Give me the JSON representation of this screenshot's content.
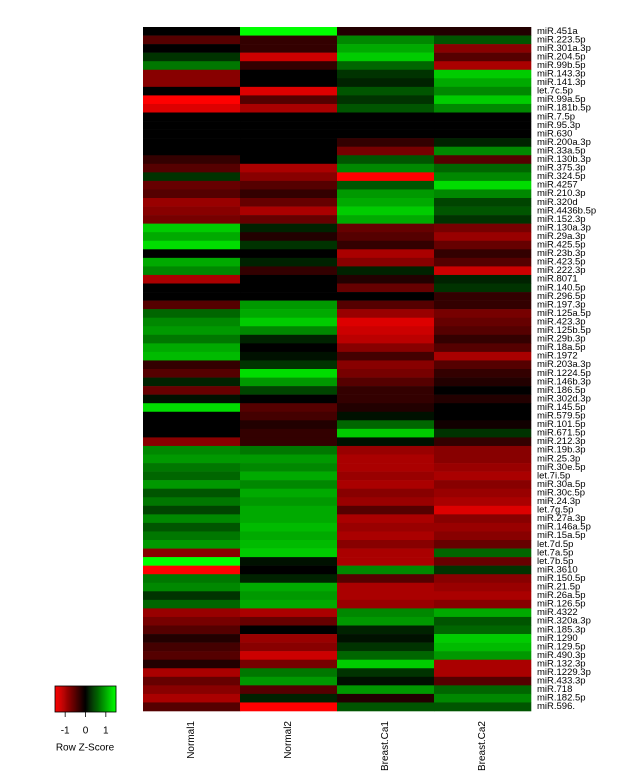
{
  "chart_data": {
    "type": "heatmap",
    "columns": [
      "Normal1",
      "Normal2",
      "Breast.Ca1",
      "Breast.Ca2"
    ],
    "rows": [
      "miR.451a",
      "miR.223.5p",
      "miR.301a.3p",
      "miR.204.5p",
      "miR.99b.5p",
      "miR.143.3p",
      "miR.141.3p",
      "let.7c.5p",
      "miR.99a.5p",
      "miR.181b.5p",
      "miR.7.5p",
      "miR.95.3p",
      "miR.630",
      "miR.200a.3p",
      "miR.33a.5p",
      "miR.130b.3p",
      "miR.375.3p",
      "miR.324.5p",
      "miR.4257",
      "miR.210.3p",
      "miR.320d",
      "miR.4436b.5p",
      "miR.152.3p",
      "miR.130a.3p",
      "miR.29a.3p",
      "miR.425.5p",
      "miR.23b.3p",
      "miR.423.5p",
      "miR.222.3p",
      "miR.8071",
      "miR.140.5p",
      "miR.296.5p",
      "miR.197.3p",
      "miR.125a.5p",
      "miR.423.3p",
      "miR.125b.5p",
      "miR.29b.3p",
      "miR.18a.5p",
      "miR.1972",
      "miR.203a.3p",
      "miR.1224.5p",
      "miR.146b.3p",
      "miR.186.5p",
      "miR.302d.3p",
      "miR.145.5p",
      "miR.579.5p",
      "miR.101.5p",
      "miR.671.5p",
      "miR.212.3p",
      "miR.19b.3p",
      "miR.25.3p",
      "miR.30e.5p",
      "let.7i.5p",
      "miR.30a.5p",
      "miR.30c.5p",
      "miR.24.3p",
      "let.7g.5p",
      "miR.27a.3p",
      "miR.146a.5p",
      "miR.15a.5p",
      "let.7d.5p",
      "let.7a.5p",
      "let.7b.5p",
      "miR.3610",
      "miR.150.5p",
      "miR.21.5p",
      "miR.26a.5p",
      "miR.126.5p",
      "miR.4322",
      "miR.320a.3p",
      "miR.185.3p",
      "miR.1290",
      "miR.129.5p",
      "miR.490.3p",
      "miR.132.3p",
      "miR.1229.3p",
      "miR.433.3p",
      "miR.718",
      "miR.182.5p",
      "miR.596."
    ],
    "values": [
      [
        0,
        1.5,
        -0.2,
        -0.2
      ],
      [
        -0.5,
        -0.3,
        0.8,
        0.5
      ],
      [
        0,
        -0.3,
        1,
        -0.8
      ],
      [
        0.3,
        -1.2,
        1.2,
        -0.5
      ],
      [
        0.7,
        -0.3,
        0.6,
        -1
      ],
      [
        -0.8,
        0,
        0.3,
        1.2
      ],
      [
        -0.8,
        0,
        0.2,
        1
      ],
      [
        0,
        -1.3,
        0.5,
        0.8
      ],
      [
        -1.5,
        -0.5,
        0.3,
        1.2
      ],
      [
        -1.3,
        -1,
        0.5,
        0.8
      ],
      [
        0,
        0,
        0,
        0
      ],
      [
        0,
        0,
        0,
        0
      ],
      [
        0,
        0,
        0,
        0
      ],
      [
        0,
        0,
        -0.3,
        0.2
      ],
      [
        0,
        0,
        -0.7,
        0.8
      ],
      [
        -0.3,
        0,
        0.5,
        -0.5
      ],
      [
        -0.5,
        -1,
        0.8,
        0.6
      ],
      [
        0.3,
        -0.8,
        -1.5,
        0.8
      ],
      [
        -0.6,
        -0.5,
        0.5,
        1.3
      ],
      [
        -0.5,
        -0.3,
        0.9,
        0.8
      ],
      [
        -0.9,
        -0.6,
        1,
        0.4
      ],
      [
        -0.8,
        -1,
        1.2,
        0.5
      ],
      [
        -0.7,
        -0.6,
        1,
        0.3
      ],
      [
        1.2,
        0.2,
        -0.6,
        -0.7
      ],
      [
        1,
        -0.2,
        -0.5,
        -0.9
      ],
      [
        1.3,
        0.3,
        -0.3,
        -0.6
      ],
      [
        0,
        0,
        -1,
        -0.3
      ],
      [
        1,
        0.2,
        -0.8,
        -0.5
      ],
      [
        0.8,
        -0.3,
        0.2,
        -1.2
      ],
      [
        -1,
        0,
        -0.2,
        0.2
      ],
      [
        0,
        0,
        -0.6,
        0.3
      ],
      [
        0,
        0,
        0,
        -0.3
      ],
      [
        -0.5,
        0.9,
        -0.5,
        -0.3
      ],
      [
        0.6,
        1,
        -0.9,
        -0.7
      ],
      [
        0.8,
        1.2,
        -1.3,
        -0.6
      ],
      [
        0.9,
        0.8,
        -1.2,
        -0.5
      ],
      [
        0.7,
        0.2,
        -1.1,
        -0.3
      ],
      [
        1,
        0,
        -0.8,
        -0.5
      ],
      [
        1.1,
        0.1,
        -0.4,
        -1
      ],
      [
        -0.3,
        0.3,
        -0.8,
        -0.5
      ],
      [
        -0.5,
        1.3,
        -0.7,
        -0.3
      ],
      [
        0.2,
        0.9,
        -0.5,
        -0.2
      ],
      [
        -0.6,
        0.4,
        -0.3,
        0
      ],
      [
        0.1,
        0,
        -0.3,
        -0.2
      ],
      [
        1.3,
        -0.5,
        -0.2,
        0
      ],
      [
        0,
        -0.4,
        0.1,
        0
      ],
      [
        0,
        -0.2,
        0.6,
        -0.1
      ],
      [
        0,
        -0.3,
        1.2,
        0.3
      ],
      [
        -0.8,
        -0.3,
        0.1,
        -0.3
      ],
      [
        0.8,
        0.7,
        -0.9,
        -0.8
      ],
      [
        0.9,
        0.9,
        -1,
        -0.8
      ],
      [
        0.7,
        0.8,
        -1,
        -0.9
      ],
      [
        0.6,
        1,
        -0.9,
        -1
      ],
      [
        0.9,
        0.8,
        -1,
        -0.8
      ],
      [
        0.5,
        1,
        -0.8,
        -0.9
      ],
      [
        0.7,
        0.9,
        -0.9,
        -1
      ],
      [
        0.4,
        1,
        -0.5,
        -1.3
      ],
      [
        0.8,
        1,
        -1,
        -0.8
      ],
      [
        0.5,
        1.1,
        -0.9,
        -0.9
      ],
      [
        0.7,
        1,
        -1,
        -0.8
      ],
      [
        0.9,
        1.1,
        -0.8,
        -0.6
      ],
      [
        -0.8,
        1.2,
        -1,
        0.6
      ],
      [
        1.5,
        0.1,
        -1,
        -0.6
      ],
      [
        -1.5,
        0,
        0.8,
        0.3
      ],
      [
        0.7,
        0.2,
        -0.5,
        -0.8
      ],
      [
        0.8,
        1,
        -1,
        -0.9
      ],
      [
        0.3,
        0.9,
        -1,
        -1
      ],
      [
        0.6,
        1,
        -0.9,
        -0.8
      ],
      [
        -0.9,
        -1,
        0.8,
        1
      ],
      [
        -0.7,
        -0.6,
        0.9,
        0.5
      ],
      [
        -0.5,
        0,
        0.2,
        0.6
      ],
      [
        -0.2,
        -0.9,
        0.1,
        1.2
      ],
      [
        -0.4,
        -0.8,
        0.3,
        1.1
      ],
      [
        -0.5,
        -1.2,
        0.6,
        0.9
      ],
      [
        -0.2,
        -0.7,
        1.2,
        -1
      ],
      [
        -1,
        0.7,
        0.3,
        -1
      ],
      [
        -0.6,
        0.9,
        0.1,
        -0.5
      ],
      [
        -0.8,
        -0.5,
        0.9,
        0.6
      ],
      [
        -1,
        0.2,
        -0.2,
        0.8
      ],
      [
        -0.5,
        -1.5,
        0.5,
        0.5
      ]
    ],
    "colors": {
      "low": "#ff0000",
      "mid": "#000000",
      "high": "#00ff00"
    },
    "colorbar": {
      "title": "Row Z-Score",
      "lim": [
        -1.5,
        1.5
      ],
      "ticks": [
        -1,
        0,
        1
      ]
    }
  }
}
